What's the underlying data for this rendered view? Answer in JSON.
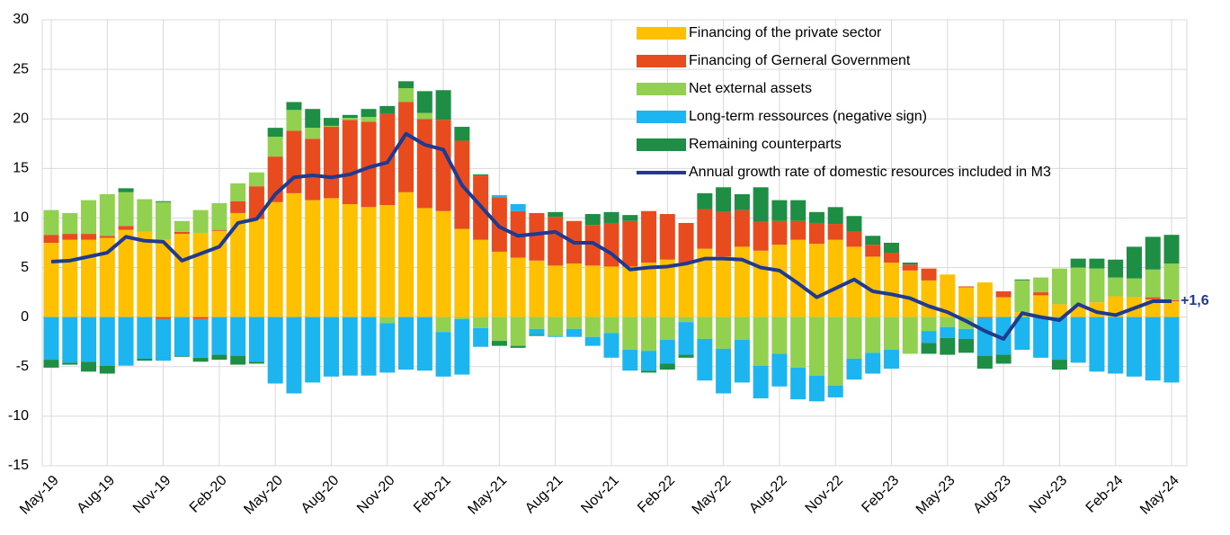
{
  "chart_data": {
    "type": "stacked-bar-line",
    "categories": [
      "May-19",
      null,
      null,
      "Aug-19",
      null,
      null,
      "Nov-19",
      null,
      null,
      "Feb-20",
      null,
      null,
      "May-20",
      null,
      null,
      "Aug-20",
      null,
      null,
      "Nov-20",
      null,
      null,
      "Feb-21",
      null,
      null,
      "May-21",
      null,
      null,
      "Aug-21",
      null,
      null,
      "Nov-21",
      null,
      null,
      "Feb-22",
      null,
      null,
      "May-22",
      null,
      null,
      "Aug-22",
      null,
      null,
      "Nov-22",
      null,
      null,
      "Feb-23",
      null,
      null,
      "May-23",
      null,
      null,
      "Aug-23",
      null,
      null,
      "Nov-23",
      null,
      null,
      "Feb-24",
      null,
      null,
      "May-24"
    ],
    "series": [
      {
        "name": "Financing of the private sector",
        "color": "#ffc000",
        "values": [
          7.5,
          7.8,
          7.8,
          8.0,
          8.8,
          8.6,
          7.8,
          8.4,
          8.5,
          8.7,
          10.5,
          9.9,
          11.6,
          12.5,
          11.8,
          12.0,
          11.4,
          11.1,
          11.3,
          12.6,
          11.0,
          10.7,
          8.9,
          7.8,
          6.6,
          6.0,
          5.7,
          5.2,
          5.4,
          5.2,
          5.1,
          5.1,
          5.5,
          5.8,
          5.5,
          6.9,
          6.1,
          7.1,
          6.7,
          7.3,
          7.8,
          7.4,
          7.8,
          7.1,
          6.1,
          5.5,
          4.7,
          3.7,
          4.3,
          3.0,
          3.5,
          2.0,
          0.5,
          2.2,
          1.3,
          1.1,
          1.5,
          2.1,
          2.0,
          1.8,
          1.6
        ]
      },
      {
        "name": "Financing of Gerneral Government",
        "color": "#e84c1e",
        "values": [
          0.8,
          0.6,
          0.6,
          0.2,
          0.4,
          0,
          -0.2,
          0.2,
          -0.2,
          0.1,
          1.2,
          3.3,
          4.6,
          6.3,
          6.2,
          7.2,
          8.5,
          8.6,
          9.2,
          9.1,
          9.0,
          9.2,
          8.9,
          6.5,
          5.5,
          4.7,
          4.8,
          4.9,
          4.3,
          4.1,
          4.4,
          4.6,
          5.2,
          4.6,
          4.0,
          4.0,
          4.5,
          3.7,
          2.9,
          2.4,
          1.9,
          2.1,
          1.6,
          1.5,
          1.2,
          1.0,
          0.6,
          1.2,
          0,
          0.1,
          -0.1,
          0.6,
          0,
          0.3,
          0,
          0,
          0,
          0,
          0,
          0.2,
          0.1
        ]
      },
      {
        "name": "Net external assets",
        "color": "#92d050",
        "values": [
          2.5,
          2.1,
          3.4,
          4.2,
          3.4,
          3.3,
          3.8,
          1.1,
          2.3,
          2.7,
          1.8,
          1.4,
          2.0,
          2.1,
          1.1,
          0.1,
          0.2,
          0.5,
          -0.6,
          1.4,
          0.6,
          -1.5,
          -0.2,
          -1.1,
          -2.4,
          -2.9,
          -1.2,
          -1.9,
          -1.2,
          -2.0,
          -1.6,
          -3.3,
          -3.4,
          -2.3,
          -0.5,
          -2.2,
          -3.2,
          -2.3,
          -4.9,
          -3.7,
          -5.1,
          -5.9,
          -6.9,
          -4.2,
          -3.6,
          -3.3,
          -3.7,
          -1.4,
          -1.0,
          -1.2,
          0,
          0,
          3.2,
          1.5,
          3.6,
          3.9,
          3.4,
          1.9,
          1.9,
          2.8,
          3.7
        ]
      },
      {
        "name": "Long-term ressources (negative sign)",
        "color": "#1cb5f0",
        "values": [
          -4.3,
          -4.6,
          -4.5,
          -4.9,
          -4.9,
          -4.2,
          -4.2,
          -3.9,
          -3.9,
          -3.8,
          -3.9,
          -4.5,
          -6.7,
          -7.7,
          -6.6,
          -6.0,
          -5.9,
          -5.9,
          -5.0,
          -5.3,
          -5.4,
          -4.5,
          -5.6,
          -1.9,
          0.2,
          0.7,
          -0.6,
          -0.1,
          -0.8,
          -0.9,
          -2.5,
          -2.1,
          -2.0,
          -2.4,
          -3.3,
          -4.2,
          -4.5,
          -4.3,
          -3.3,
          -3.3,
          -3.2,
          -2.6,
          -1.2,
          -2.1,
          -2.1,
          -1.9,
          0,
          -1.2,
          -1.1,
          -1.0,
          -3.8,
          -3.8,
          -3.3,
          -4.1,
          -4.3,
          -4.6,
          -5.5,
          -5.7,
          -6.0,
          -6.4,
          -6.6
        ]
      },
      {
        "name": "Remaining counterparts",
        "color": "#1e8e45",
        "values": [
          -0.8,
          -0.2,
          -1.0,
          -0.8,
          0.4,
          -0.2,
          0.1,
          -0.1,
          -0.4,
          -0.5,
          -0.9,
          -0.2,
          0.9,
          0.8,
          1.9,
          0.8,
          0.3,
          0.8,
          0.8,
          0.7,
          2.2,
          3.0,
          1.4,
          0.1,
          -0.5,
          -0.2,
          -0.1,
          0.5,
          0,
          1.1,
          1.1,
          0.6,
          -0.2,
          -0.6,
          -0.3,
          1.6,
          2.5,
          1.6,
          3.5,
          2.1,
          2.1,
          1.1,
          1.7,
          1.6,
          0.9,
          1.0,
          0.2,
          -1.1,
          -1.7,
          -1.4,
          -1.3,
          -0.9,
          0.1,
          0,
          -1.0,
          0.9,
          1.0,
          1.8,
          3.2,
          3.3,
          2.9
        ]
      }
    ],
    "line": {
      "name": "Annual growth rate of domestic resources included in M3",
      "color": "#1f3a8f",
      "values": [
        5.6,
        5.7,
        6.1,
        6.5,
        8.1,
        7.7,
        7.6,
        5.7,
        6.4,
        7.1,
        9.5,
        9.9,
        12.4,
        14.1,
        14.3,
        14.1,
        14.4,
        15.1,
        15.6,
        18.5,
        17.4,
        16.9,
        13.3,
        11.2,
        9.1,
        8.2,
        8.4,
        8.6,
        7.5,
        7.5,
        6.4,
        4.8,
        5.0,
        5.1,
        5.4,
        5.9,
        5.9,
        5.8,
        5.0,
        4.7,
        3.4,
        2.0,
        2.9,
        3.8,
        2.6,
        2.3,
        1.9,
        1.1,
        0.5,
        -0.4,
        -1.4,
        -2.2,
        0.4,
        0,
        -0.3,
        1.3,
        0.5,
        0.2,
        0.9,
        1.6,
        1.6
      ]
    },
    "annotation": "+1,6",
    "ylim": [
      -15,
      30
    ],
    "yticks": [
      -15,
      -10,
      -5,
      0,
      5,
      10,
      15,
      20,
      25,
      30
    ],
    "grid": true
  }
}
